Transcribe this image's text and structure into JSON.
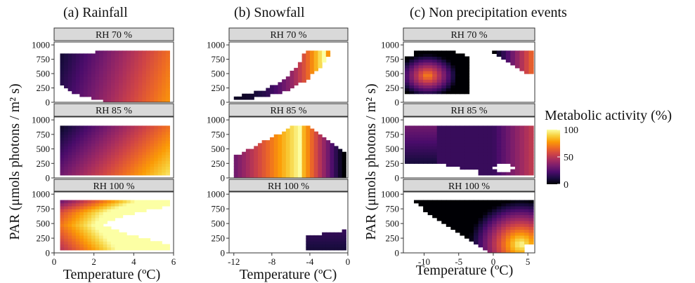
{
  "colors": {
    "strip_fill": "#d9d9d9",
    "strip_stroke": "#333333",
    "panel_border": "#333333",
    "colormap": [
      "#000004",
      "#1b0c41",
      "#4a0c6b",
      "#781c6d",
      "#a52c60",
      "#cf4446",
      "#ed6925",
      "#fb9b06",
      "#f7d13d",
      "#fcffa4"
    ]
  },
  "legend": {
    "title": "Metabolic activity (%)",
    "ticks": [
      "100",
      "50",
      "0"
    ],
    "tick_values": [
      100,
      50,
      0
    ],
    "range": [
      0,
      100
    ]
  },
  "chart_data": [
    {
      "type": "heatmap",
      "title": "(a) Rainfall",
      "xlabel": "Temperature (ºC)",
      "ylabel": "PAR (μmols photons / m² s)",
      "xlim": [
        0,
        6
      ],
      "x_ticks": [
        0,
        2,
        4,
        6
      ],
      "x_tick_labels": [
        "0",
        "2",
        "4",
        "6"
      ],
      "ylim": [
        0,
        1050
      ],
      "y_ticks": [
        0,
        250,
        500,
        750,
        1000
      ],
      "y_tick_labels": [
        "0",
        "250",
        "500",
        "750",
        "1000"
      ],
      "facets": [
        {
          "strip": "RH 70 %",
          "pattern": "rain70"
        },
        {
          "strip": "RH 85 %",
          "pattern": "rain85"
        },
        {
          "strip": "RH 100 %",
          "pattern": "rain100"
        }
      ]
    },
    {
      "type": "heatmap",
      "title": "(b) Snowfall",
      "xlabel": "Temperature (ºC)",
      "ylabel": "",
      "xlim": [
        -12.5,
        0
      ],
      "x_ticks": [
        -12,
        -8,
        -4,
        0
      ],
      "x_tick_labels": [
        "-12",
        "-8",
        "-4",
        "0"
      ],
      "ylim": [
        0,
        1050
      ],
      "y_ticks": [
        0,
        250,
        500,
        750,
        1000
      ],
      "y_tick_labels": [
        "0",
        "250",
        "500",
        "750",
        "1000"
      ],
      "facets": [
        {
          "strip": "RH 70 %",
          "pattern": "snow70"
        },
        {
          "strip": "RH 85 %",
          "pattern": "snow85"
        },
        {
          "strip": "RH 100 %",
          "pattern": "snow100"
        }
      ]
    },
    {
      "type": "heatmap",
      "title": "(c) Non precipitation events",
      "xlabel": "Temperature (ºC)",
      "ylabel": "PAR (μmols photons / m² s)",
      "xlim": [
        -13,
        6
      ],
      "x_ticks": [
        -10,
        -5,
        0,
        5
      ],
      "x_tick_labels": [
        "-10",
        "-5",
        "0",
        "5"
      ],
      "ylim": [
        0,
        1050
      ],
      "y_ticks": [
        0,
        250,
        500,
        750,
        1000
      ],
      "y_tick_labels": [
        "0",
        "250",
        "500",
        "750",
        "1000"
      ],
      "facets": [
        {
          "strip": "RH 70 %",
          "pattern": "non70"
        },
        {
          "strip": "RH 85 %",
          "pattern": "non85"
        },
        {
          "strip": "RH 100 %",
          "pattern": "non100"
        }
      ]
    }
  ]
}
